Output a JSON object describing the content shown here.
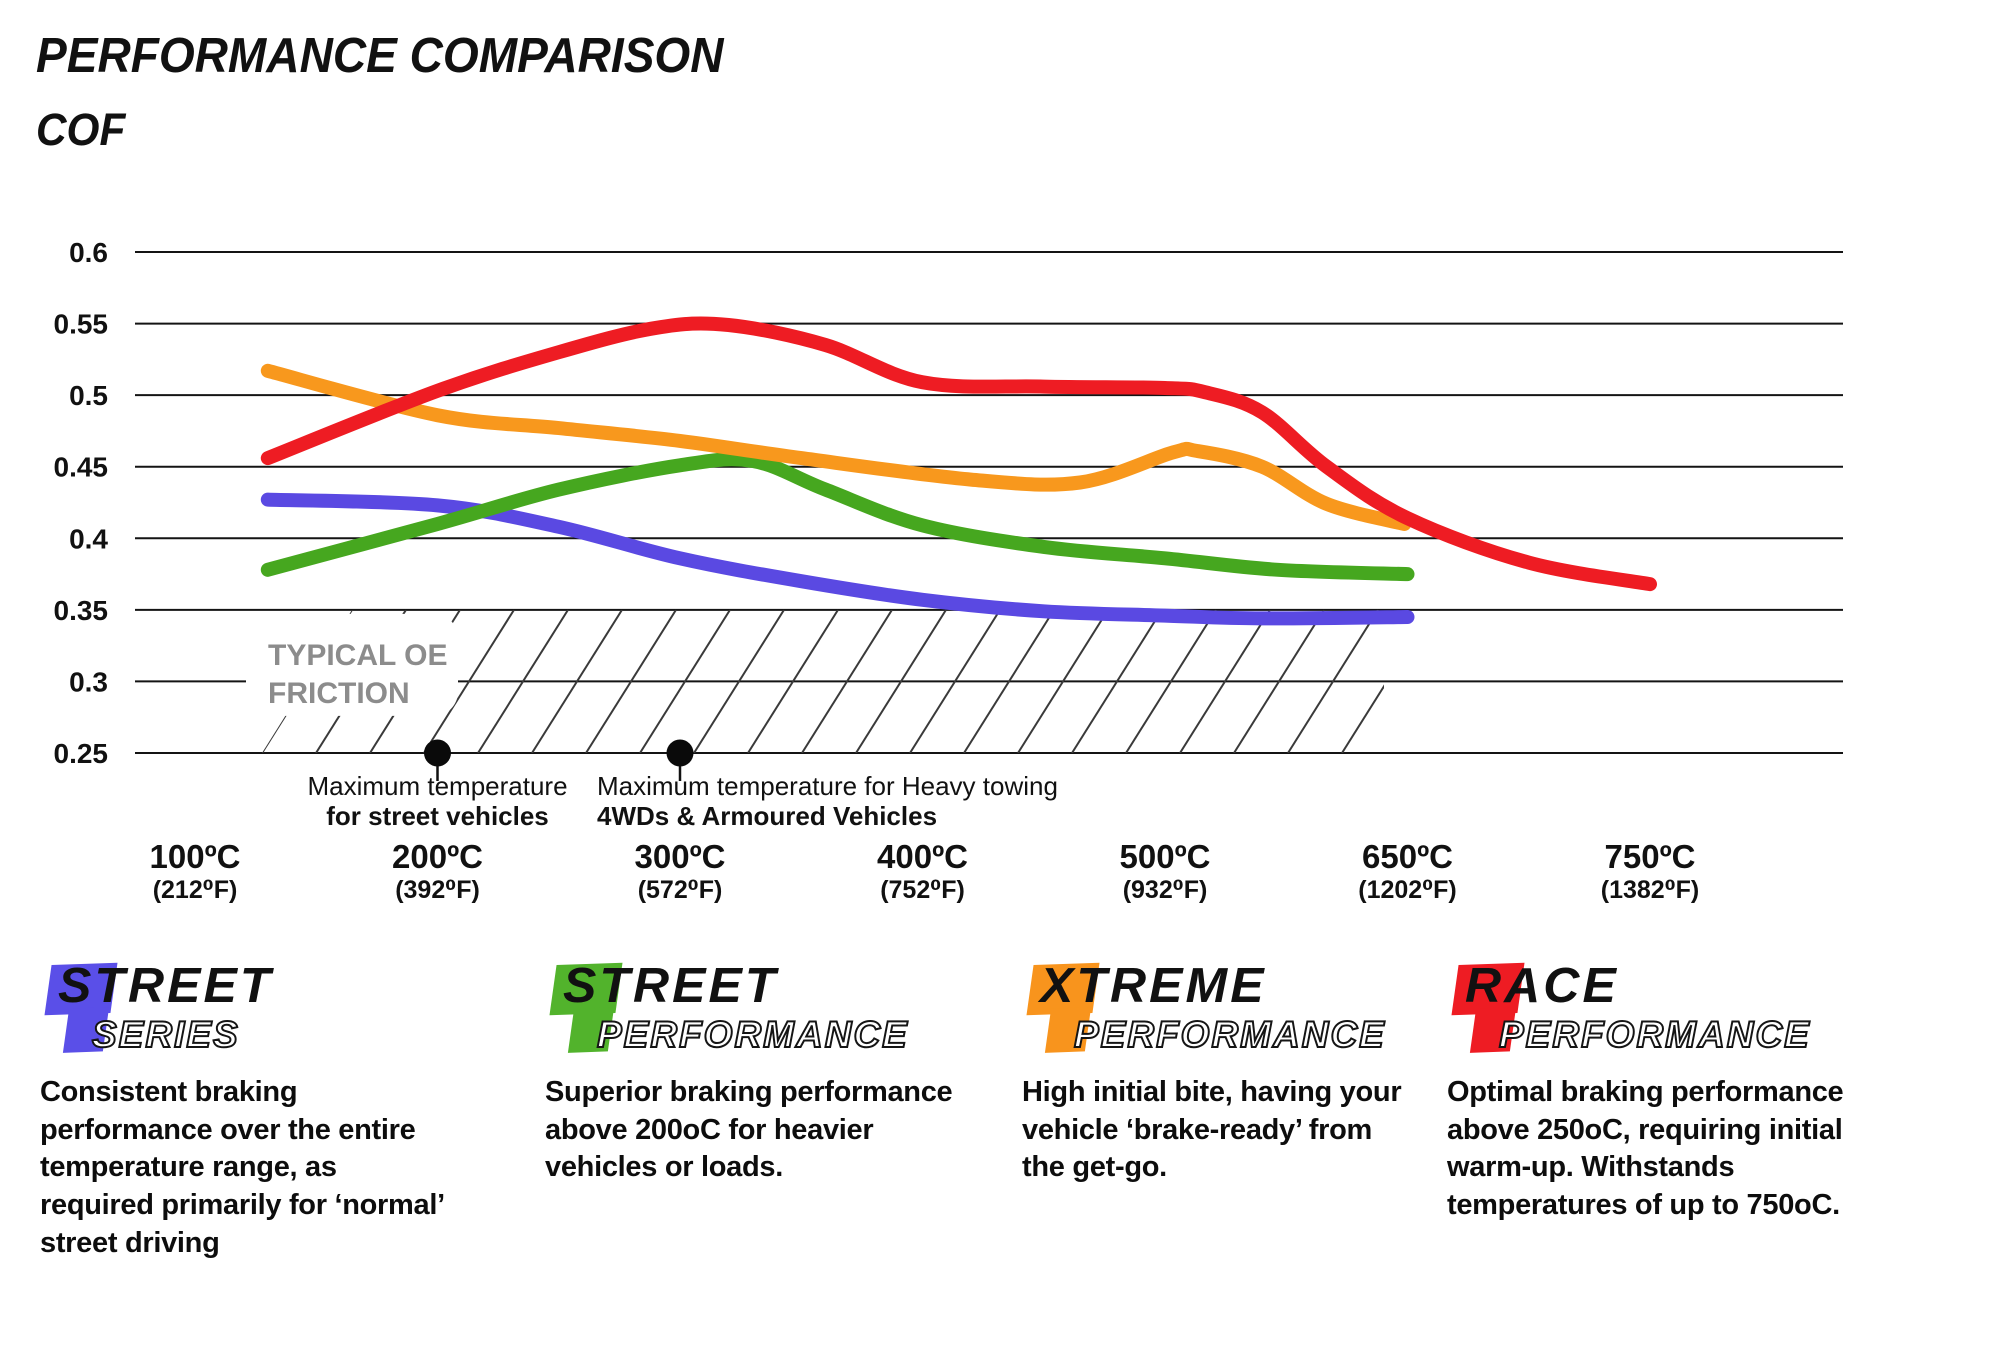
{
  "title": "PERFORMANCE COMPARISON",
  "chart_data": {
    "type": "line",
    "title": "PERFORMANCE COMPARISON",
    "ylabel": "COF",
    "ylim": [
      0.25,
      0.6
    ],
    "grid": "horizontal",
    "legend_position": "none",
    "y_ticks": [
      0.25,
      0.3,
      0.35,
      0.4,
      0.45,
      0.5,
      0.55,
      0.6
    ],
    "x_ticks": [
      {
        "temp_c": 100,
        "label_c": "100ºC",
        "label_f": "(212⁰F)"
      },
      {
        "temp_c": 200,
        "label_c": "200ºC",
        "label_f": "(392⁰F)"
      },
      {
        "temp_c": 300,
        "label_c": "300ºC",
        "label_f": "(572⁰F)"
      },
      {
        "temp_c": 400,
        "label_c": "400ºC",
        "label_f": "(752⁰F)"
      },
      {
        "temp_c": 500,
        "label_c": "500ºC",
        "label_f": "(932⁰F)"
      },
      {
        "temp_c": 650,
        "label_c": "650ºC",
        "label_f": "(1202⁰F)"
      },
      {
        "temp_c": 750,
        "label_c": "750ºC",
        "label_f": "(1382⁰F)"
      }
    ],
    "series": [
      {
        "name": "Street Series",
        "color": "#5a49e2",
        "points": [
          [
            130,
            0.427
          ],
          [
            200,
            0.423
          ],
          [
            250,
            0.408
          ],
          [
            300,
            0.386
          ],
          [
            350,
            0.37
          ],
          [
            400,
            0.357
          ],
          [
            450,
            0.349
          ],
          [
            500,
            0.346
          ],
          [
            560,
            0.344
          ],
          [
            650,
            0.345
          ]
        ]
      },
      {
        "name": "Street Performance",
        "color": "#46a71f",
        "points": [
          [
            130,
            0.378
          ],
          [
            200,
            0.41
          ],
          [
            250,
            0.434
          ],
          [
            300,
            0.451
          ],
          [
            330,
            0.454
          ],
          [
            360,
            0.434
          ],
          [
            400,
            0.409
          ],
          [
            450,
            0.394
          ],
          [
            500,
            0.386
          ],
          [
            570,
            0.378
          ],
          [
            650,
            0.375
          ]
        ]
      },
      {
        "name": "Xtreme Performance",
        "color": "#f8981d",
        "points": [
          [
            130,
            0.517
          ],
          [
            200,
            0.486
          ],
          [
            250,
            0.477
          ],
          [
            300,
            0.468
          ],
          [
            350,
            0.456
          ],
          [
            420,
            0.441
          ],
          [
            465,
            0.439
          ],
          [
            505,
            0.46
          ],
          [
            520,
            0.461
          ],
          [
            560,
            0.45
          ],
          [
            600,
            0.424
          ],
          [
            648,
            0.41
          ]
        ]
      },
      {
        "name": "Race Performance",
        "color": "#ee1c23",
        "points": [
          [
            130,
            0.456
          ],
          [
            200,
            0.503
          ],
          [
            250,
            0.53
          ],
          [
            290,
            0.547
          ],
          [
            320,
            0.549
          ],
          [
            360,
            0.535
          ],
          [
            400,
            0.509
          ],
          [
            450,
            0.506
          ],
          [
            500,
            0.505
          ],
          [
            525,
            0.502
          ],
          [
            560,
            0.488
          ],
          [
            600,
            0.45
          ],
          [
            650,
            0.414
          ],
          [
            700,
            0.383
          ],
          [
            750,
            0.368
          ]
        ]
      }
    ],
    "oe_band": {
      "label_line1": "TYPICAL OE",
      "label_line2": "FRICTION",
      "cof_min": 0.25,
      "cof_max": 0.35,
      "label_color": "#8c8c8c"
    },
    "markers": [
      {
        "temp_c": 200,
        "cof": 0.25,
        "align": "center",
        "label_line1": "Maximum temperature",
        "label_line2": "for street vehicles"
      },
      {
        "temp_c": 300,
        "cof": 0.25,
        "align": "left",
        "label_line1": "Maximum temperature for Heavy towing",
        "label_line2": "4WDs & Armoured Vehicles"
      }
    ]
  },
  "products": [
    {
      "word1": "STREET",
      "word2": "SERIES",
      "color": "#5a4fe8",
      "description": "Consistent braking performance over the entire temperature range, as required primarily for ‘normal’ street driving"
    },
    {
      "word1": "STREET",
      "word2": "PERFORMANCE",
      "color": "#52b32c",
      "description": "Superior braking performance above 200oC for heavier vehicles or loads."
    },
    {
      "word1": "XTREME",
      "word2": "PERFORMANCE",
      "color": "#f8941d",
      "description": "High initial bite, having your vehicle ‘brake-ready’ from the get-go."
    },
    {
      "word1": "RACE",
      "word2": "PERFORMANCE",
      "color": "#ee1c23",
      "description": "Optimal braking performance above 250oC, requiring initial warm-up. Withstands temperatures of up to 750oC."
    }
  ]
}
